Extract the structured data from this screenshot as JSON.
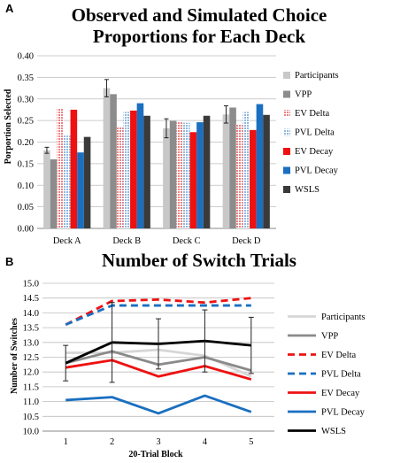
{
  "figure": {
    "panel_a_letter": "A",
    "panel_b_letter": "B"
  },
  "chart_data": [
    {
      "type": "bar",
      "title_lines": [
        "Observed and Simulated Choice",
        "Proportions for Each Deck"
      ],
      "xlabel": "",
      "ylabel": "Porportion Selected",
      "ylim": [
        0,
        0.4
      ],
      "yticks": [
        "0.00",
        "0.05",
        "0.10",
        "0.15",
        "0.20",
        "0.25",
        "0.30",
        "0.35",
        "0.40"
      ],
      "grid": true,
      "legend_position": "right",
      "categories": [
        "Deck A",
        "Deck B",
        "Deck C",
        "Deck D"
      ],
      "series": [
        {
          "name": "Participants",
          "color": "#c8c8c8",
          "pattern": "solid",
          "values": [
            0.181,
            0.325,
            0.232,
            0.264
          ],
          "error": [
            0.007,
            0.02,
            0.022,
            0.02
          ]
        },
        {
          "name": "VPP",
          "color": "#8c8c8c",
          "pattern": "solid",
          "values": [
            0.16,
            0.311,
            0.249,
            0.28
          ]
        },
        {
          "name": "EV Delta",
          "color": "#f08080",
          "pattern": "dotted",
          "values": [
            0.278,
            0.234,
            0.246,
            0.242
          ]
        },
        {
          "name": "PVL Delta",
          "color": "#8fb8e0",
          "pattern": "dotted",
          "values": [
            0.215,
            0.27,
            0.245,
            0.27
          ]
        },
        {
          "name": "EV Decay",
          "color": "#ee1111",
          "pattern": "solid",
          "values": [
            0.275,
            0.273,
            0.223,
            0.228
          ]
        },
        {
          "name": "PVL Decay",
          "color": "#1a6fc0",
          "pattern": "solid",
          "values": [
            0.176,
            0.29,
            0.246,
            0.288
          ]
        },
        {
          "name": "WSLS",
          "color": "#3a3a3a",
          "pattern": "solid",
          "values": [
            0.212,
            0.261,
            0.261,
            0.263
          ]
        }
      ]
    },
    {
      "type": "line",
      "title": "Number of Switch Trials",
      "xlabel": "20-Trial Block",
      "ylabel": "Number of Switches",
      "x": [
        1,
        2,
        3,
        4,
        5
      ],
      "xticks": [
        "1",
        "2",
        "3",
        "4",
        "5"
      ],
      "ylim": [
        10,
        15
      ],
      "yticks": [
        "10.0",
        "10.5",
        "11.0",
        "11.5",
        "12.0",
        "12.5",
        "13.0",
        "13.5",
        "14.0",
        "14.5",
        "15.0"
      ],
      "grid": true,
      "legend_position": "right",
      "series": [
        {
          "name": "Participants",
          "color": "#d6d6d6",
          "dash": "solid",
          "values": [
            12.65,
            12.65,
            12.75,
            12.55,
            11.85
          ]
        },
        {
          "name": "VPP",
          "color": "#8a8a8a",
          "dash": "solid",
          "values": [
            12.3,
            12.7,
            12.25,
            12.5,
            12.05
          ]
        },
        {
          "name": "EV Delta",
          "color": "#ee1111",
          "dash": "dashed",
          "values": [
            13.6,
            14.4,
            14.45,
            14.35,
            14.5
          ]
        },
        {
          "name": "PVL Delta",
          "color": "#1a6fc0",
          "dash": "dashed",
          "values": [
            13.6,
            14.25,
            14.25,
            14.25,
            14.25
          ]
        },
        {
          "name": "EV Decay",
          "color": "#ee1111",
          "dash": "solid",
          "values": [
            12.15,
            12.4,
            11.85,
            12.2,
            11.75
          ]
        },
        {
          "name": "PVL Decay",
          "color": "#1a6fc0",
          "dash": "solid",
          "values": [
            11.05,
            11.15,
            10.6,
            11.2,
            10.65
          ]
        },
        {
          "name": "WSLS",
          "color": "#000000",
          "dash": "solid",
          "values": [
            12.3,
            13.0,
            12.95,
            13.05,
            12.9
          ],
          "error": [
            0.6,
            1.35,
            0.85,
            1.05,
            0.95
          ]
        }
      ]
    }
  ]
}
